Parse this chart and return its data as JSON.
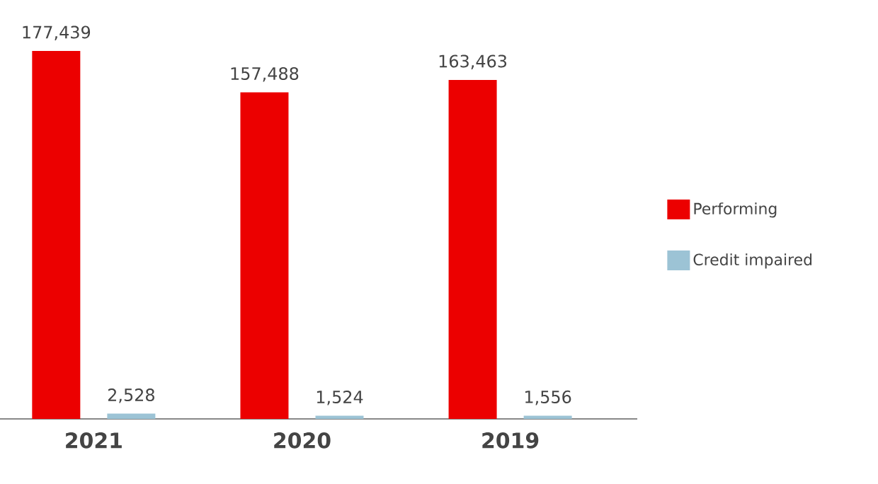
{
  "chart_data": {
    "type": "bar",
    "categories": [
      "2021",
      "2020",
      "2019"
    ],
    "series": [
      {
        "name": "Performing",
        "color": "#ec0000",
        "values": [
          177439,
          157488,
          163463
        ],
        "value_labels": [
          "177,439",
          "157,488",
          "163,463"
        ]
      },
      {
        "name": "Credit impaired",
        "color": "#9cc3d5",
        "values": [
          2528,
          1524,
          1556
        ],
        "value_labels": [
          "2,528",
          "1,524",
          "1,556"
        ]
      }
    ],
    "legend": "right"
  }
}
